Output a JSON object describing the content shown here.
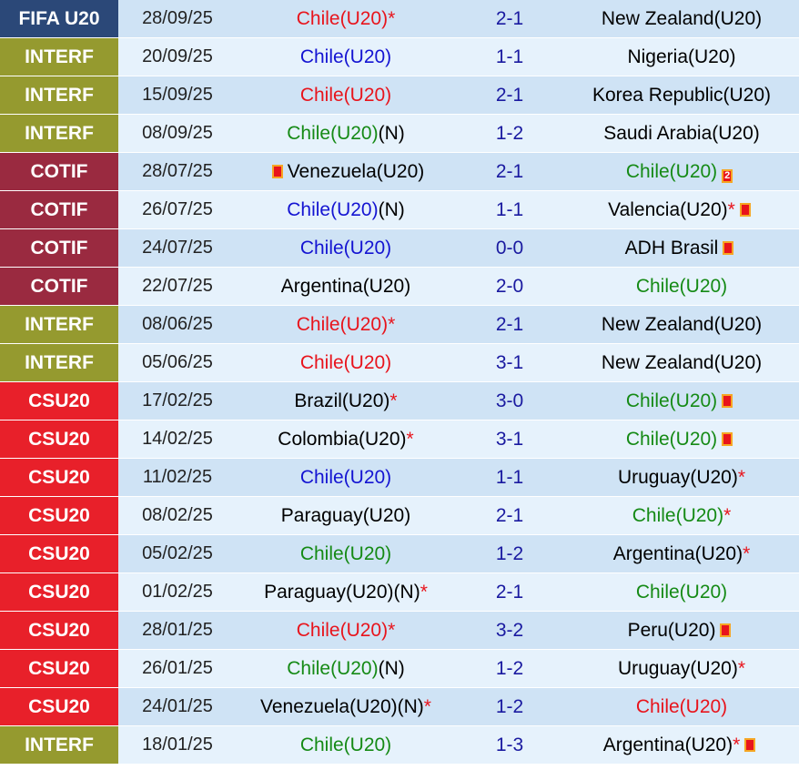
{
  "rows": [
    {
      "comp": "FIFA U20",
      "comp_color": "#2b4878",
      "date": "28/09/25",
      "home": "Chile(U20)",
      "home_color": "#e8141c",
      "home_star": "*",
      "score": "2-1",
      "away": "New Zealand(U20)",
      "away_color": "#000000"
    },
    {
      "comp": "INTERF",
      "comp_color": "#959a2f",
      "date": "20/09/25",
      "home": "Chile(U20)",
      "home_color": "#1414d2",
      "score": "1-1",
      "away": "Nigeria(U20)",
      "away_color": "#000000"
    },
    {
      "comp": "INTERF",
      "comp_color": "#959a2f",
      "date": "15/09/25",
      "home": "Chile(U20)",
      "home_color": "#e8141c",
      "score": "2-1",
      "away": "Korea Republic(U20)",
      "away_color": "#000000"
    },
    {
      "comp": "INTERF",
      "comp_color": "#959a2f",
      "date": "08/09/25",
      "home": "Chile(U20)",
      "home_color": "#158a15",
      "home_note": "(N)",
      "score": "1-2",
      "away": "Saudi Arabia(U20)",
      "away_color": "#000000"
    },
    {
      "comp": "COTIF",
      "comp_color": "#9a2a40",
      "date": "28/07/25",
      "home_cards": 1,
      "home": "Venezuela(U20)",
      "home_color": "#000000",
      "score": "2-1",
      "away": "Chile(U20)",
      "away_color": "#158a15",
      "away_cards": 2
    },
    {
      "comp": "COTIF",
      "comp_color": "#9a2a40",
      "date": "26/07/25",
      "home": "Chile(U20)",
      "home_color": "#1414d2",
      "home_note": "(N)",
      "score": "1-1",
      "away": "Valencia(U20)",
      "away_color": "#000000",
      "away_star": "*",
      "away_cards": 1
    },
    {
      "comp": "COTIF",
      "comp_color": "#9a2a40",
      "date": "24/07/25",
      "home": "Chile(U20)",
      "home_color": "#1414d2",
      "score": "0-0",
      "away": "ADH Brasil",
      "away_color": "#000000",
      "away_cards": 1
    },
    {
      "comp": "COTIF",
      "comp_color": "#9a2a40",
      "date": "22/07/25",
      "home": "Argentina(U20)",
      "home_color": "#000000",
      "score": "2-0",
      "away": "Chile(U20)",
      "away_color": "#158a15"
    },
    {
      "comp": "INTERF",
      "comp_color": "#959a2f",
      "date": "08/06/25",
      "home": "Chile(U20)",
      "home_color": "#e8141c",
      "home_star": "*",
      "score": "2-1",
      "away": "New Zealand(U20)",
      "away_color": "#000000"
    },
    {
      "comp": "INTERF",
      "comp_color": "#959a2f",
      "date": "05/06/25",
      "home": "Chile(U20)",
      "home_color": "#e8141c",
      "score": "3-1",
      "away": "New Zealand(U20)",
      "away_color": "#000000"
    },
    {
      "comp": "CSU20",
      "comp_color": "#e8202a",
      "date": "17/02/25",
      "home": "Brazil(U20)",
      "home_color": "#000000",
      "home_star": "*",
      "score": "3-0",
      "away": "Chile(U20)",
      "away_color": "#158a15",
      "away_cards": 1
    },
    {
      "comp": "CSU20",
      "comp_color": "#e8202a",
      "date": "14/02/25",
      "home": "Colombia(U20)",
      "home_color": "#000000",
      "home_star": "*",
      "score": "3-1",
      "away": "Chile(U20)",
      "away_color": "#158a15",
      "away_cards": 1
    },
    {
      "comp": "CSU20",
      "comp_color": "#e8202a",
      "date": "11/02/25",
      "home": "Chile(U20)",
      "home_color": "#1414d2",
      "score": "1-1",
      "away": "Uruguay(U20)",
      "away_color": "#000000",
      "away_star": "*"
    },
    {
      "comp": "CSU20",
      "comp_color": "#e8202a",
      "date": "08/02/25",
      "home": "Paraguay(U20)",
      "home_color": "#000000",
      "score": "2-1",
      "away": "Chile(U20)",
      "away_color": "#158a15",
      "away_star": "*"
    },
    {
      "comp": "CSU20",
      "comp_color": "#e8202a",
      "date": "05/02/25",
      "home": "Chile(U20)",
      "home_color": "#158a15",
      "score": "1-2",
      "away": "Argentina(U20)",
      "away_color": "#000000",
      "away_star": "*"
    },
    {
      "comp": "CSU20",
      "comp_color": "#e8202a",
      "date": "01/02/25",
      "home": "Paraguay(U20)",
      "home_color": "#000000",
      "home_note": "(N)",
      "home_star": "*",
      "score": "2-1",
      "away": "Chile(U20)",
      "away_color": "#158a15"
    },
    {
      "comp": "CSU20",
      "comp_color": "#e8202a",
      "date": "28/01/25",
      "home": "Chile(U20)",
      "home_color": "#e8141c",
      "home_star": "*",
      "score": "3-2",
      "away": "Peru(U20)",
      "away_color": "#000000",
      "away_cards": 1
    },
    {
      "comp": "CSU20",
      "comp_color": "#e8202a",
      "date": "26/01/25",
      "home": "Chile(U20)",
      "home_color": "#158a15",
      "home_note": "(N)",
      "score": "1-2",
      "away": "Uruguay(U20)",
      "away_color": "#000000",
      "away_star": "*"
    },
    {
      "comp": "CSU20",
      "comp_color": "#e8202a",
      "date": "24/01/25",
      "home": "Venezuela(U20)",
      "home_color": "#000000",
      "home_note": "(N)",
      "home_star": "*",
      "score": "1-2",
      "away": "Chile(U20)",
      "away_color": "#e8141c"
    },
    {
      "comp": "INTERF",
      "comp_color": "#959a2f",
      "date": "18/01/25",
      "home": "Chile(U20)",
      "home_color": "#158a15",
      "score": "1-3",
      "away": "Argentina(U20)",
      "away_color": "#000000",
      "away_star": "*",
      "away_cards": 1
    }
  ]
}
